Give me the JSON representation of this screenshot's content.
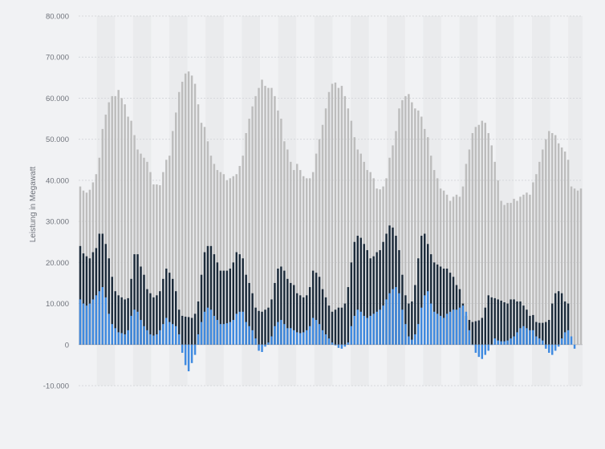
{
  "chart_data": {
    "type": "bar",
    "ylabel": "Leistung in Megawatt",
    "ylim": [
      -10000,
      80000
    ],
    "yticks": [
      80000,
      70000,
      60000,
      50000,
      40000,
      30000,
      20000,
      10000,
      0,
      -10000
    ],
    "ytick_labels": [
      "80.000",
      "70.000",
      "60.000",
      "50.000",
      "40.000",
      "30.000",
      "20.000",
      "10.000",
      "0",
      "-10.000"
    ],
    "grid": true,
    "colors": {
      "light": "#bdbdbd",
      "dark": "#1c2b3a",
      "blue": "#3f8ae0"
    },
    "series": [
      {
        "name": "",
        "color": "#bdbdbd",
        "values": [
          38500,
          37500,
          37000,
          37700,
          39500,
          41500,
          45500,
          52500,
          56000,
          59000,
          60500,
          60500,
          62000,
          60000,
          58500,
          55500,
          54500,
          51000,
          47500,
          46500,
          45500,
          44500,
          42000,
          39000,
          39000,
          38800,
          42000,
          45000,
          46000,
          52000,
          56500,
          61500,
          64000,
          66000,
          66500,
          65500,
          63500,
          58500,
          54000,
          53000,
          49500,
          46000,
          44000,
          42500,
          42000,
          41500,
          40000,
          40500,
          41000,
          41500,
          43500,
          46000,
          51500,
          55000,
          58000,
          60500,
          62500,
          64500,
          63000,
          62500,
          62500,
          60500,
          57000,
          55000,
          49500,
          47500,
          44500,
          42500,
          44000,
          42500,
          41000,
          40500,
          40500,
          42000,
          46500,
          50000,
          53500,
          57500,
          61500,
          63500,
          63800,
          62500,
          63000,
          60500,
          57500,
          54500,
          50500,
          47500,
          46500,
          44500,
          42500,
          42000,
          40500,
          38000,
          37800,
          38500,
          40500,
          45500,
          48500,
          52000,
          57500,
          59500,
          60500,
          61000,
          59000,
          57500,
          57000,
          55500,
          52500,
          50500,
          46000,
          42500,
          40500,
          38000,
          37500,
          36500,
          35000,
          36000,
          36500,
          36000,
          38500,
          44000,
          47500,
          51500,
          53000,
          53500,
          54500,
          54000,
          51500,
          48500,
          44500,
          40000,
          35000,
          34000,
          34500,
          34500,
          35500,
          35000,
          36000,
          36500,
          37000,
          36500,
          39500,
          41500,
          44500,
          47500,
          50000,
          52000,
          51500,
          51000,
          49000,
          48000,
          47000,
          45000,
          38500,
          38000,
          37500,
          38000
        ]
      },
      {
        "name": "",
        "color": "#1c2b3a",
        "values": [
          24000,
          22200,
          21500,
          21000,
          22500,
          23500,
          27000,
          27000,
          24500,
          21000,
          16500,
          13000,
          12000,
          11500,
          11000,
          11300,
          16000,
          22000,
          22000,
          19000,
          17000,
          13500,
          12500,
          11500,
          12000,
          13000,
          16000,
          18500,
          17500,
          16000,
          13000,
          8500,
          7000,
          6800,
          6700,
          6500,
          7500,
          10500,
          17000,
          22500,
          24000,
          24000,
          22000,
          20000,
          18000,
          18000,
          18000,
          18500,
          20000,
          22500,
          22000,
          21000,
          17000,
          15000,
          12500,
          9000,
          8200,
          8000,
          8500,
          9000,
          11000,
          15000,
          18500,
          19000,
          18000,
          16000,
          15000,
          14500,
          12500,
          12000,
          11500,
          12000,
          14000,
          18000,
          17500,
          16500,
          13500,
          11500,
          9500,
          8000,
          8500,
          9000,
          9000,
          10000,
          14000,
          20000,
          25000,
          26500,
          26000,
          24500,
          23000,
          21000,
          21500,
          22500,
          23000,
          25000,
          27000,
          29000,
          28500,
          26500,
          23000,
          17000,
          12000,
          10000,
          10500,
          14500,
          21000,
          26500,
          27000,
          24500,
          22000,
          20000,
          19500,
          19000,
          18500,
          18500,
          17500,
          16500,
          14500,
          13500,
          10000,
          7000,
          6000,
          5500,
          5700,
          5900,
          6500,
          9000,
          12000,
          11500,
          11300,
          11000,
          10700,
          10300,
          10000,
          11000,
          11000,
          10500,
          10500,
          9500,
          8500,
          7000,
          7200,
          5500,
          5300,
          5300,
          5500,
          6000,
          10000,
          12500,
          13000,
          12500,
          10500,
          10000
        ]
      },
      {
        "name": "",
        "color": "#3f8ae0",
        "values": [
          11000,
          10000,
          9500,
          10000,
          11000,
          12000,
          13000,
          14000,
          11500,
          7500,
          5000,
          4000,
          3000,
          2800,
          2500,
          3500,
          7000,
          8500,
          8000,
          6000,
          4500,
          3500,
          2500,
          2200,
          2500,
          3500,
          5000,
          6500,
          5500,
          5000,
          4500,
          2500,
          -2000,
          -5000,
          -6500,
          -4500,
          -2500,
          2500,
          5500,
          8000,
          9000,
          8500,
          7000,
          6000,
          5000,
          5000,
          5200,
          5500,
          6000,
          7500,
          8000,
          8000,
          5500,
          4500,
          3500,
          1500,
          -1500,
          -1800,
          -500,
          500,
          2000,
          4500,
          5500,
          6000,
          5000,
          4000,
          4000,
          3500,
          3000,
          2800,
          3000,
          3500,
          4500,
          6500,
          6000,
          5000,
          3500,
          2500,
          1500,
          500,
          -200,
          -800,
          -1000,
          -500,
          500,
          4500,
          7000,
          8500,
          8000,
          7000,
          6500,
          7000,
          7500,
          8000,
          8500,
          9500,
          11000,
          12500,
          13500,
          14000,
          12500,
          8500,
          5000,
          2000,
          1200,
          2500,
          5000,
          9000,
          12000,
          13000,
          10000,
          8000,
          7500,
          7000,
          6500,
          7500,
          8000,
          8500,
          8500,
          9000,
          9500,
          8000,
          3500,
          0,
          -2000,
          -3000,
          -3500,
          -2500,
          -1500,
          0,
          1500,
          1000,
          800,
          800,
          1000,
          1500,
          2000,
          3000,
          4000,
          4500,
          4000,
          3500,
          3500,
          2000,
          1500,
          1000,
          -1000,
          -2000,
          -2500,
          -1500,
          -500,
          1500,
          3000,
          3500,
          2000,
          -1000
        ]
      }
    ]
  }
}
